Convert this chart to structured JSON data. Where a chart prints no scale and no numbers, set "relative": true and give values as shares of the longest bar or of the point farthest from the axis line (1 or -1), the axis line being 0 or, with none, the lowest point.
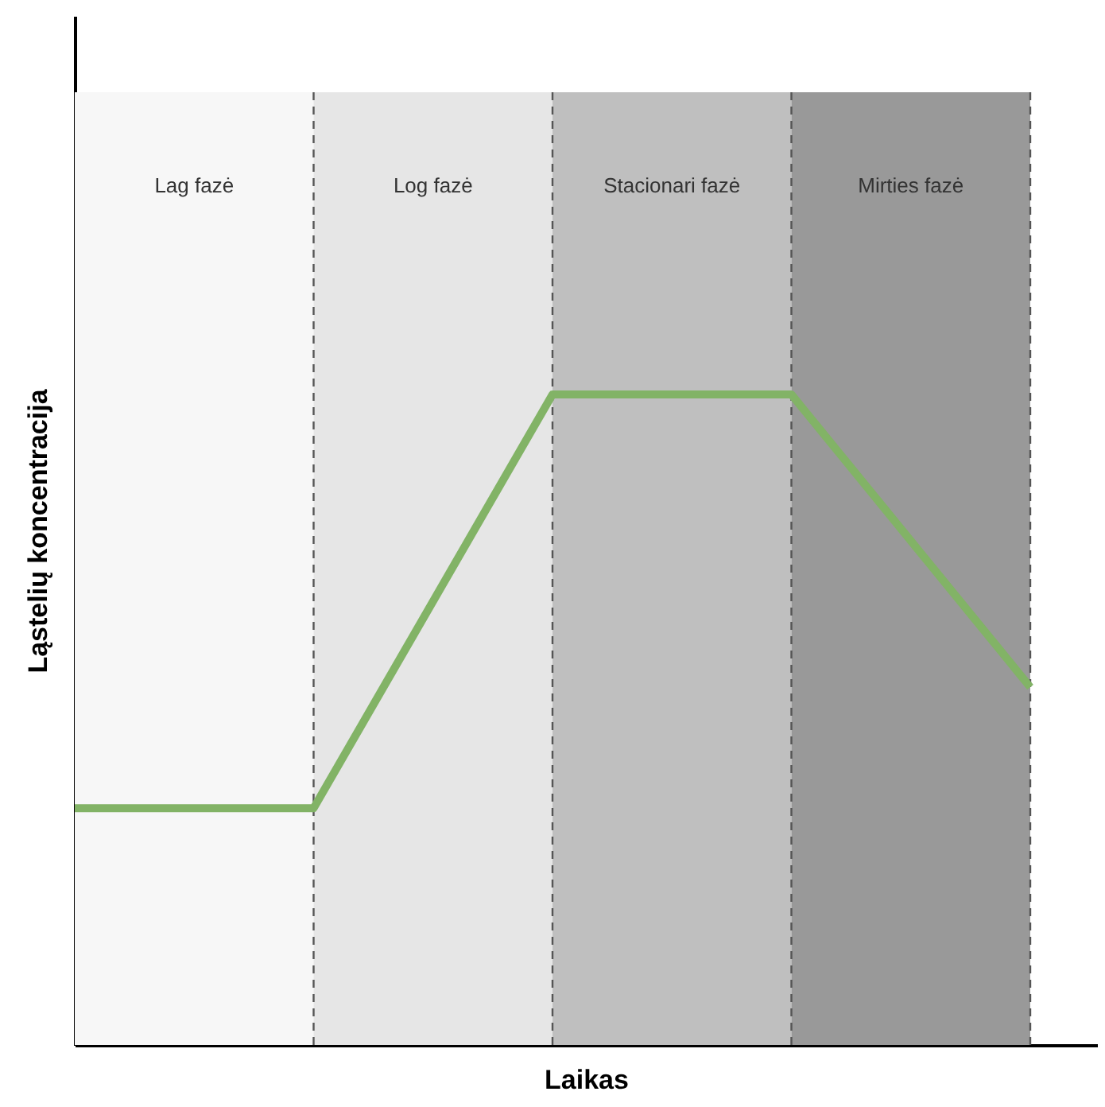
{
  "chart_data": {
    "type": "line",
    "relative": true,
    "xlabel": "Laikas",
    "ylabel": "Ląstelių koncentracija",
    "tick_labels": false,
    "grid": "x",
    "categories": [
      null,
      null,
      null,
      null,
      null
    ],
    "series": [
      {
        "color": "#82b366",
        "values": [
          0.364,
          0.364,
          1,
          1,
          0.55
        ]
      }
    ],
    "annotations": [
      "Lag fazė",
      "Log fazė",
      "Stacionari fazė",
      "Mirties fazė"
    ]
  }
}
